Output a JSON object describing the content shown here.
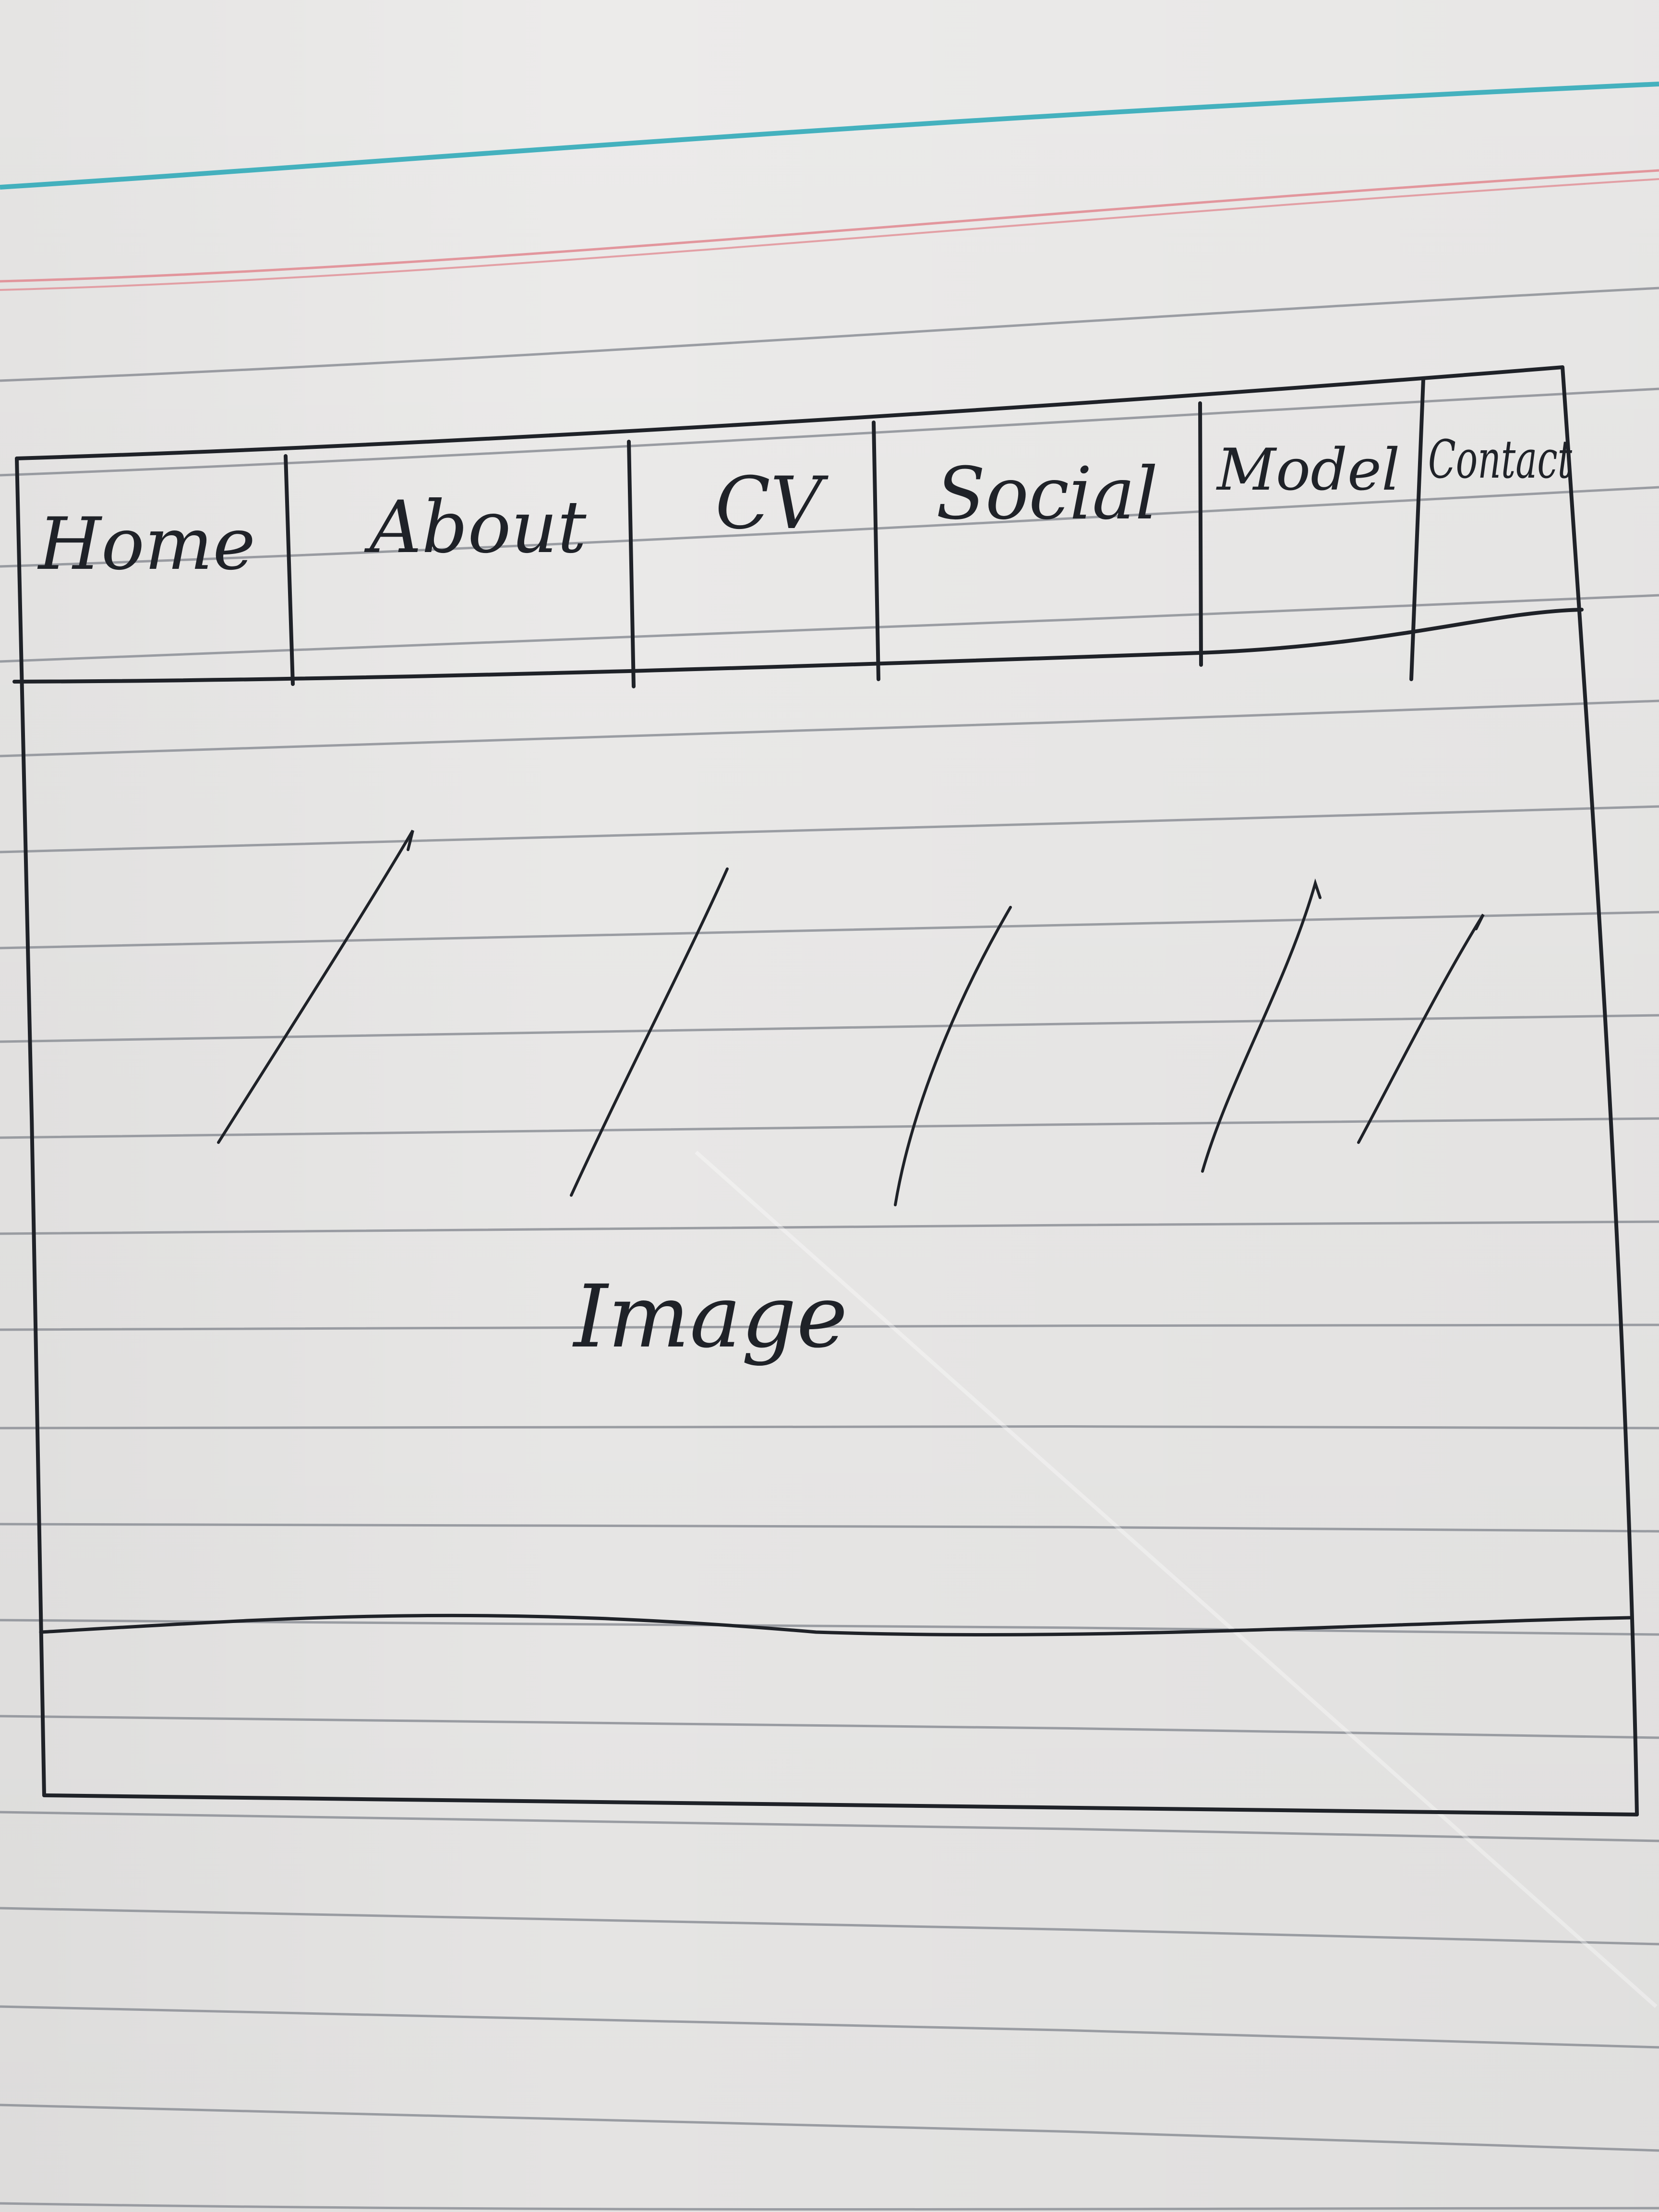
{
  "sketch": {
    "nav_items": [
      "Home",
      "About",
      "CV",
      "Social",
      "Model",
      "Contact"
    ],
    "image_label": "Image"
  },
  "colors": {
    "ink": "#1f2228",
    "paper": "#ecebea",
    "rule_line": "#8c8f96",
    "margin_blue": "#27a7b6",
    "margin_red": "#e0878f"
  }
}
